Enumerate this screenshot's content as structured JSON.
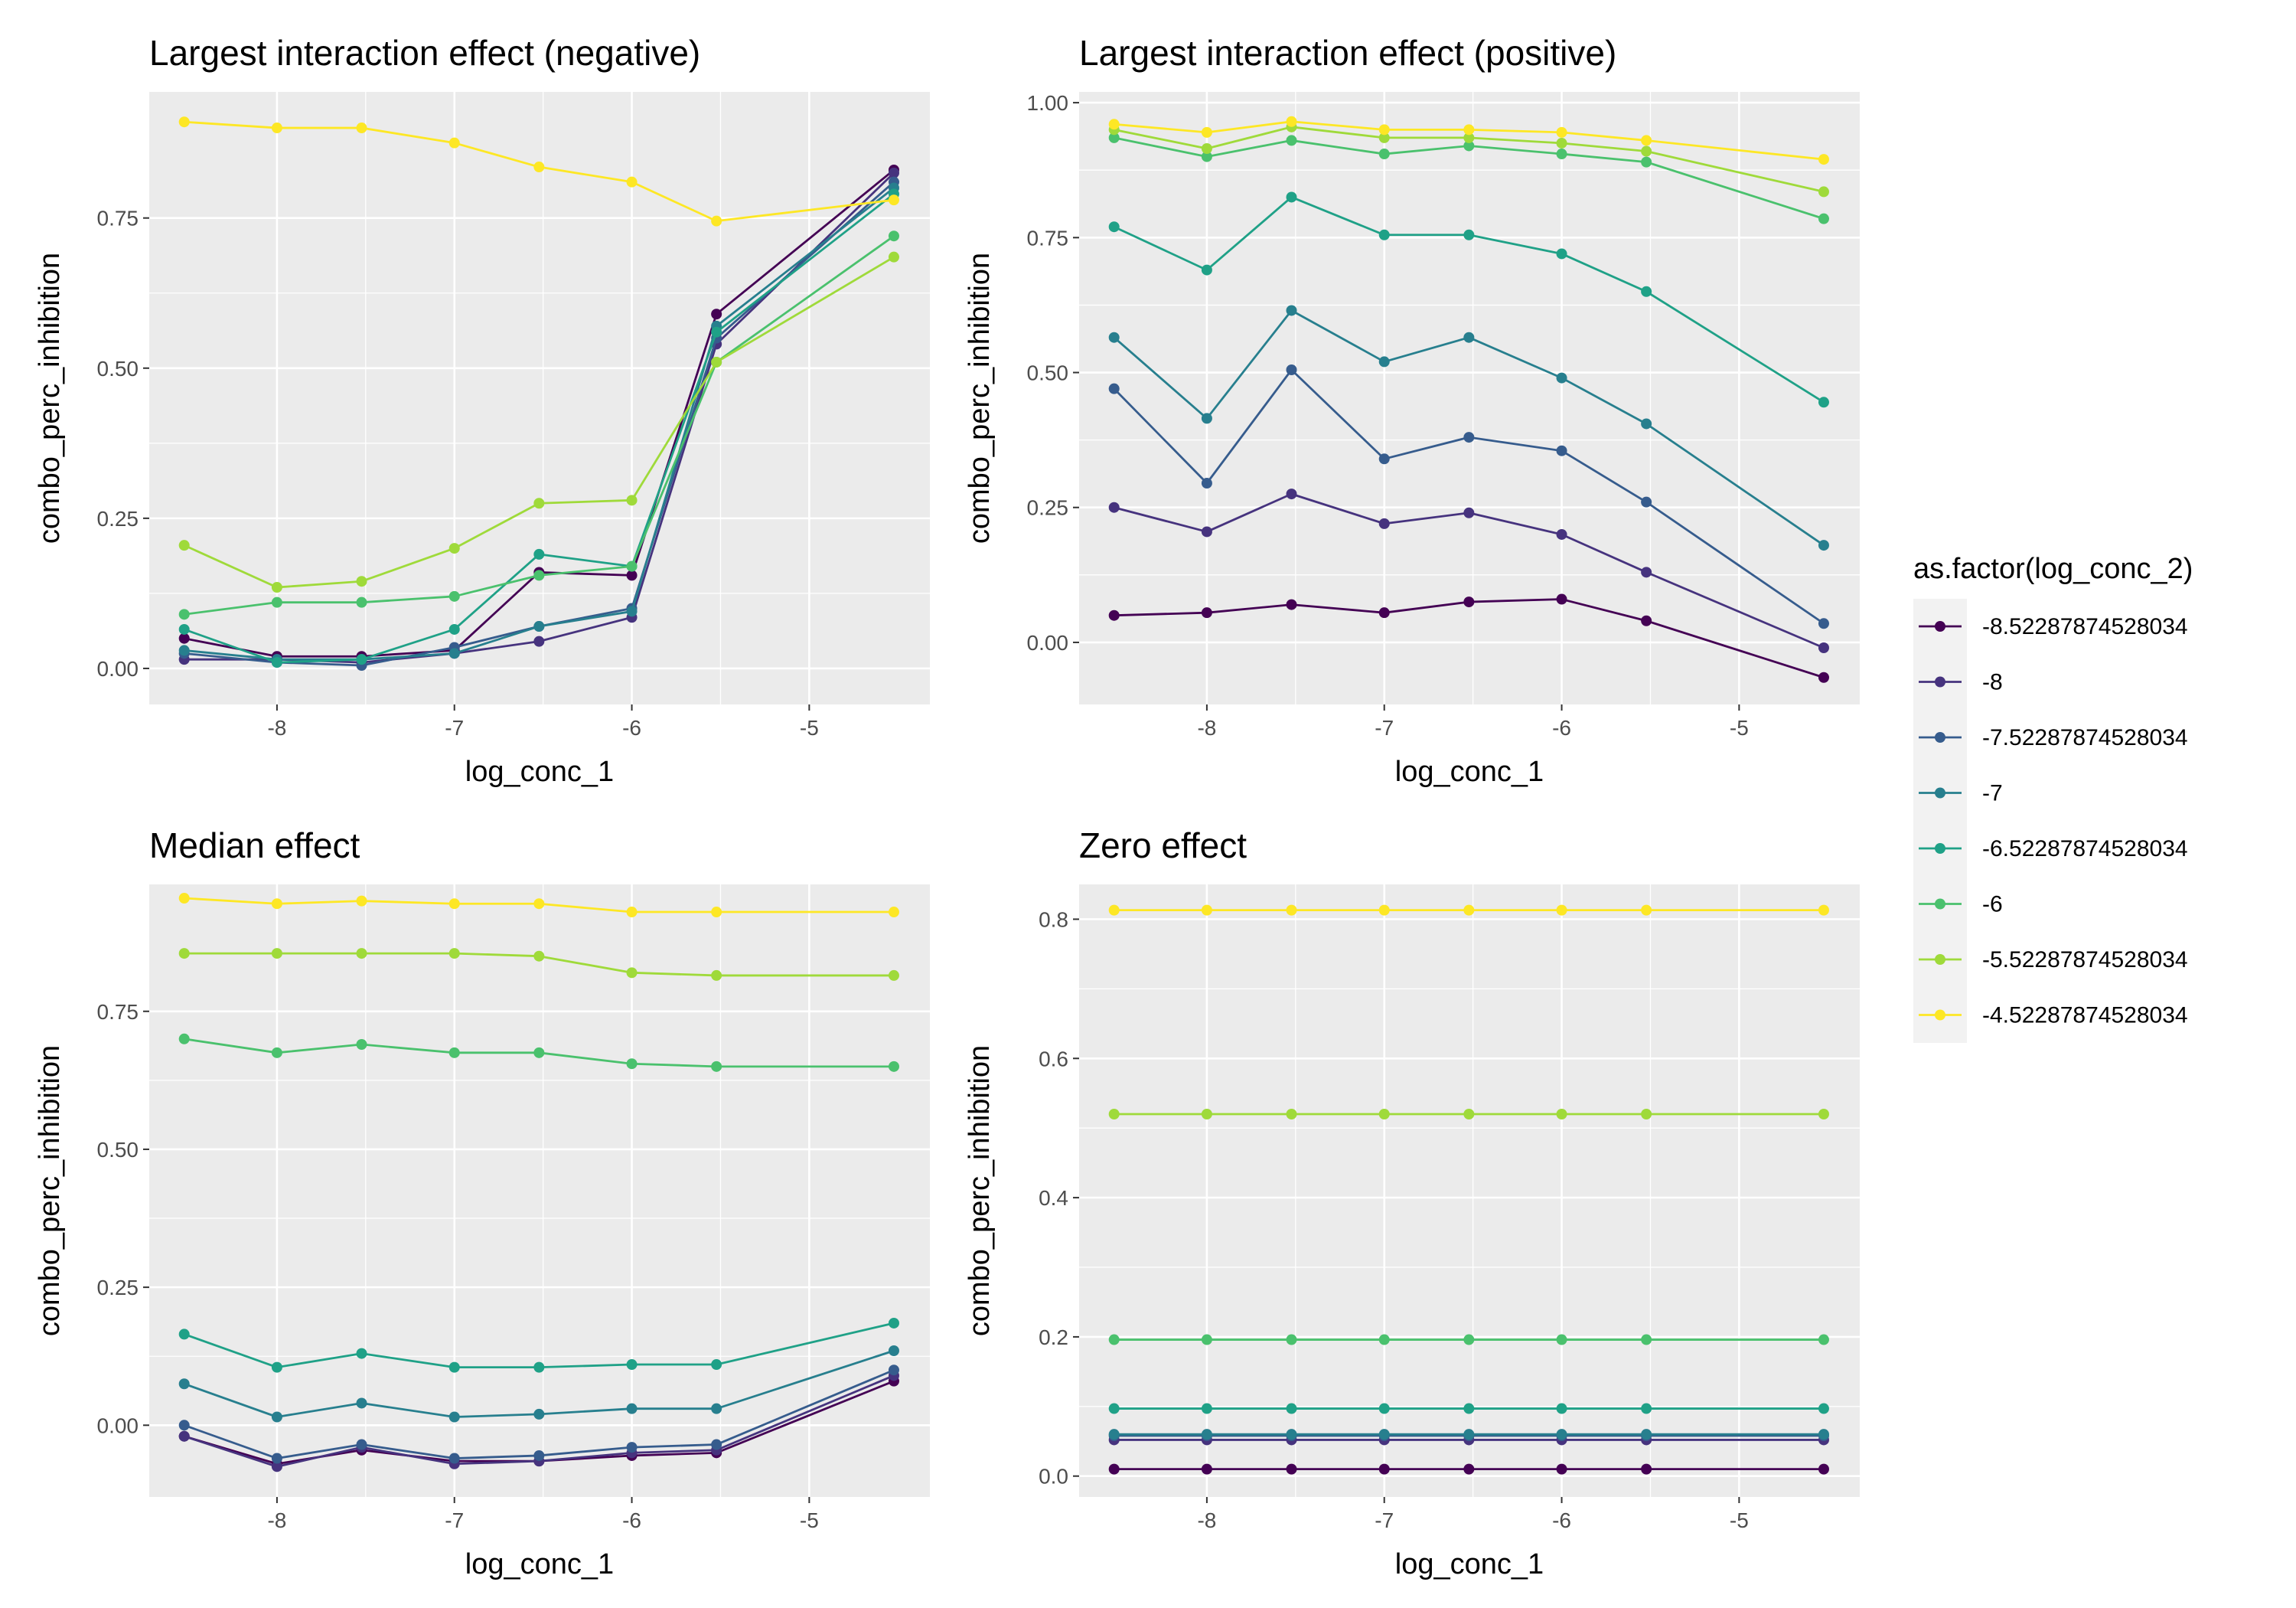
{
  "chart_data": [
    {
      "type": "line",
      "title": "Largest interaction effect (negative)",
      "xlabel": "log_conc_1",
      "ylabel": "combo_perc_inhibition",
      "xlim": [
        -8.72,
        -4.32
      ],
      "ylim": [
        -0.06,
        0.96
      ],
      "xticks": [
        -8,
        -7,
        -6,
        -5
      ],
      "xtick_labels": [
        "-8",
        "-7",
        "-6",
        "-5"
      ],
      "yticks": [
        0,
        0.25,
        0.5,
        0.75
      ],
      "ytick_labels": [
        "0.00",
        "0.25",
        "0.50",
        "0.75"
      ],
      "x": [
        -8.52287874528034,
        -8,
        -7.52287874528034,
        -7,
        -6.52287874528034,
        -6,
        -5.52287874528034,
        -4.52287874528034
      ],
      "series": [
        {
          "name": "-8.52287874528034",
          "values": [
            0.05,
            0.02,
            0.02,
            0.03,
            0.16,
            0.155,
            0.59,
            0.83
          ]
        },
        {
          "name": "-8",
          "values": [
            0.015,
            0.015,
            0.01,
            0.025,
            0.045,
            0.085,
            0.54,
            0.825
          ]
        },
        {
          "name": "-7.52287874528034",
          "values": [
            0.025,
            0.01,
            0.005,
            0.035,
            0.07,
            0.1,
            0.55,
            0.81
          ]
        },
        {
          "name": "-7",
          "values": [
            0.03,
            0.015,
            0.015,
            0.025,
            0.07,
            0.095,
            0.57,
            0.8
          ]
        },
        {
          "name": "-6.52287874528034",
          "values": [
            0.065,
            0.01,
            0.015,
            0.065,
            0.19,
            0.17,
            0.56,
            0.79
          ]
        },
        {
          "name": "-6",
          "values": [
            0.09,
            0.11,
            0.11,
            0.12,
            0.155,
            0.17,
            0.51,
            0.72
          ]
        },
        {
          "name": "-5.52287874528034",
          "values": [
            0.205,
            0.135,
            0.145,
            0.2,
            0.275,
            0.28,
            0.51,
            0.685
          ]
        },
        {
          "name": "-4.52287874528034",
          "values": [
            0.91,
            0.9,
            0.9,
            0.875,
            0.835,
            0.81,
            0.745,
            0.78
          ]
        }
      ]
    },
    {
      "type": "line",
      "title": "Largest interaction effect (positive)",
      "xlabel": "log_conc_1",
      "ylabel": "combo_perc_inhibition",
      "xlim": [
        -8.72,
        -4.32
      ],
      "ylim": [
        -0.115,
        1.02
      ],
      "xticks": [
        -8,
        -7,
        -6,
        -5
      ],
      "xtick_labels": [
        "-8",
        "-7",
        "-6",
        "-5"
      ],
      "yticks": [
        0,
        0.25,
        0.5,
        0.75,
        1
      ],
      "ytick_labels": [
        "0.00",
        "0.25",
        "0.50",
        "0.75",
        "1.00"
      ],
      "x": [
        -8.52287874528034,
        -8,
        -7.52287874528034,
        -7,
        -6.52287874528034,
        -6,
        -5.52287874528034,
        -4.52287874528034
      ],
      "series": [
        {
          "name": "-8.52287874528034",
          "values": [
            0.05,
            0.055,
            0.07,
            0.055,
            0.075,
            0.08,
            0.04,
            -0.065
          ]
        },
        {
          "name": "-8",
          "values": [
            0.25,
            0.205,
            0.275,
            0.22,
            0.24,
            0.2,
            0.13,
            -0.01
          ]
        },
        {
          "name": "-7.52287874528034",
          "values": [
            0.47,
            0.295,
            0.505,
            0.34,
            0.38,
            0.355,
            0.26,
            0.035
          ]
        },
        {
          "name": "-7",
          "values": [
            0.565,
            0.415,
            0.615,
            0.52,
            0.565,
            0.49,
            0.405,
            0.18
          ]
        },
        {
          "name": "-6.52287874528034",
          "values": [
            0.77,
            0.69,
            0.825,
            0.755,
            0.755,
            0.72,
            0.65,
            0.445
          ]
        },
        {
          "name": "-6",
          "values": [
            0.935,
            0.9,
            0.93,
            0.905,
            0.92,
            0.905,
            0.89,
            0.785
          ]
        },
        {
          "name": "-5.52287874528034",
          "values": [
            0.95,
            0.915,
            0.955,
            0.935,
            0.935,
            0.925,
            0.91,
            0.835
          ]
        },
        {
          "name": "-4.52287874528034",
          "values": [
            0.96,
            0.945,
            0.965,
            0.95,
            0.95,
            0.945,
            0.93,
            0.895
          ]
        }
      ]
    },
    {
      "type": "line",
      "title": "Median effect",
      "xlabel": "log_conc_1",
      "ylabel": "combo_perc_inhibition",
      "xlim": [
        -8.72,
        -4.32
      ],
      "ylim": [
        -0.13,
        0.98
      ],
      "xticks": [
        -8,
        -7,
        -6,
        -5
      ],
      "xtick_labels": [
        "-8",
        "-7",
        "-6",
        "-5"
      ],
      "yticks": [
        0,
        0.25,
        0.5,
        0.75
      ],
      "ytick_labels": [
        "0.00",
        "0.25",
        "0.50",
        "0.75"
      ],
      "x": [
        -8.52287874528034,
        -8,
        -7.52287874528034,
        -7,
        -6.52287874528034,
        -6,
        -5.52287874528034,
        -4.52287874528034
      ],
      "series": [
        {
          "name": "-8.52287874528034",
          "values": [
            -0.02,
            -0.07,
            -0.045,
            -0.065,
            -0.065,
            -0.055,
            -0.05,
            0.08
          ]
        },
        {
          "name": "-8",
          "values": [
            -0.02,
            -0.075,
            -0.04,
            -0.07,
            -0.065,
            -0.05,
            -0.045,
            0.09
          ]
        },
        {
          "name": "-7.52287874528034",
          "values": [
            0.0,
            -0.06,
            -0.035,
            -0.06,
            -0.055,
            -0.04,
            -0.035,
            0.1
          ]
        },
        {
          "name": "-7",
          "values": [
            0.075,
            0.015,
            0.04,
            0.015,
            0.02,
            0.03,
            0.03,
            0.135
          ]
        },
        {
          "name": "-6.52287874528034",
          "values": [
            0.165,
            0.105,
            0.13,
            0.105,
            0.105,
            0.11,
            0.11,
            0.185
          ]
        },
        {
          "name": "-6",
          "values": [
            0.7,
            0.675,
            0.69,
            0.675,
            0.675,
            0.655,
            0.65,
            0.65
          ]
        },
        {
          "name": "-5.52287874528034",
          "values": [
            0.855,
            0.855,
            0.855,
            0.855,
            0.85,
            0.82,
            0.815,
            0.815
          ]
        },
        {
          "name": "-4.52287874528034",
          "values": [
            0.955,
            0.945,
            0.95,
            0.945,
            0.945,
            0.93,
            0.93,
            0.93
          ]
        }
      ]
    },
    {
      "type": "line",
      "title": "Zero effect",
      "xlabel": "log_conc_1",
      "ylabel": "combo_perc_inhibition",
      "xlim": [
        -8.72,
        -4.32
      ],
      "ylim": [
        -0.03,
        0.85
      ],
      "xticks": [
        -8,
        -7,
        -6,
        -5
      ],
      "xtick_labels": [
        "-8",
        "-7",
        "-6",
        "-5"
      ],
      "yticks": [
        0,
        0.2,
        0.4,
        0.6,
        0.8
      ],
      "ytick_labels": [
        "0.0",
        "0.2",
        "0.4",
        "0.6",
        "0.8"
      ],
      "x": [
        -8.52287874528034,
        -8,
        -7.52287874528034,
        -7,
        -6.52287874528034,
        -6,
        -5.52287874528034,
        -4.52287874528034
      ],
      "series": [
        {
          "name": "-8.52287874528034",
          "values": [
            0.01,
            0.01,
            0.01,
            0.01,
            0.01,
            0.01,
            0.01,
            0.01
          ]
        },
        {
          "name": "-8",
          "values": [
            0.052,
            0.052,
            0.052,
            0.052,
            0.052,
            0.052,
            0.052,
            0.052
          ]
        },
        {
          "name": "-7.52287874528034",
          "values": [
            0.058,
            0.058,
            0.058,
            0.058,
            0.058,
            0.058,
            0.058,
            0.058
          ]
        },
        {
          "name": "-7",
          "values": [
            0.06,
            0.06,
            0.06,
            0.06,
            0.06,
            0.06,
            0.06,
            0.06
          ]
        },
        {
          "name": "-6.52287874528034",
          "values": [
            0.097,
            0.097,
            0.097,
            0.097,
            0.097,
            0.097,
            0.097,
            0.097
          ]
        },
        {
          "name": "-6",
          "values": [
            0.196,
            0.196,
            0.196,
            0.196,
            0.196,
            0.196,
            0.196,
            0.196
          ]
        },
        {
          "name": "-5.52287874528034",
          "values": [
            0.52,
            0.52,
            0.52,
            0.52,
            0.52,
            0.52,
            0.52,
            0.52
          ]
        },
        {
          "name": "-4.52287874528034",
          "values": [
            0.813,
            0.813,
            0.813,
            0.813,
            0.813,
            0.813,
            0.813,
            0.813
          ]
        }
      ]
    }
  ],
  "legend": {
    "title": "as.factor(log_conc_2)",
    "entries": [
      {
        "label": "-8.52287874528034",
        "color": "#440154"
      },
      {
        "label": "-8",
        "color": "#46337E"
      },
      {
        "label": "-7.52287874528034",
        "color": "#365C8D"
      },
      {
        "label": "-7",
        "color": "#277F8E"
      },
      {
        "label": "-6.52287874528034",
        "color": "#1FA187"
      },
      {
        "label": "-6",
        "color": "#4AC16D"
      },
      {
        "label": "-5.52287874528034",
        "color": "#9FDA3A"
      },
      {
        "label": "-4.52287874528034",
        "color": "#FDE725"
      }
    ]
  }
}
